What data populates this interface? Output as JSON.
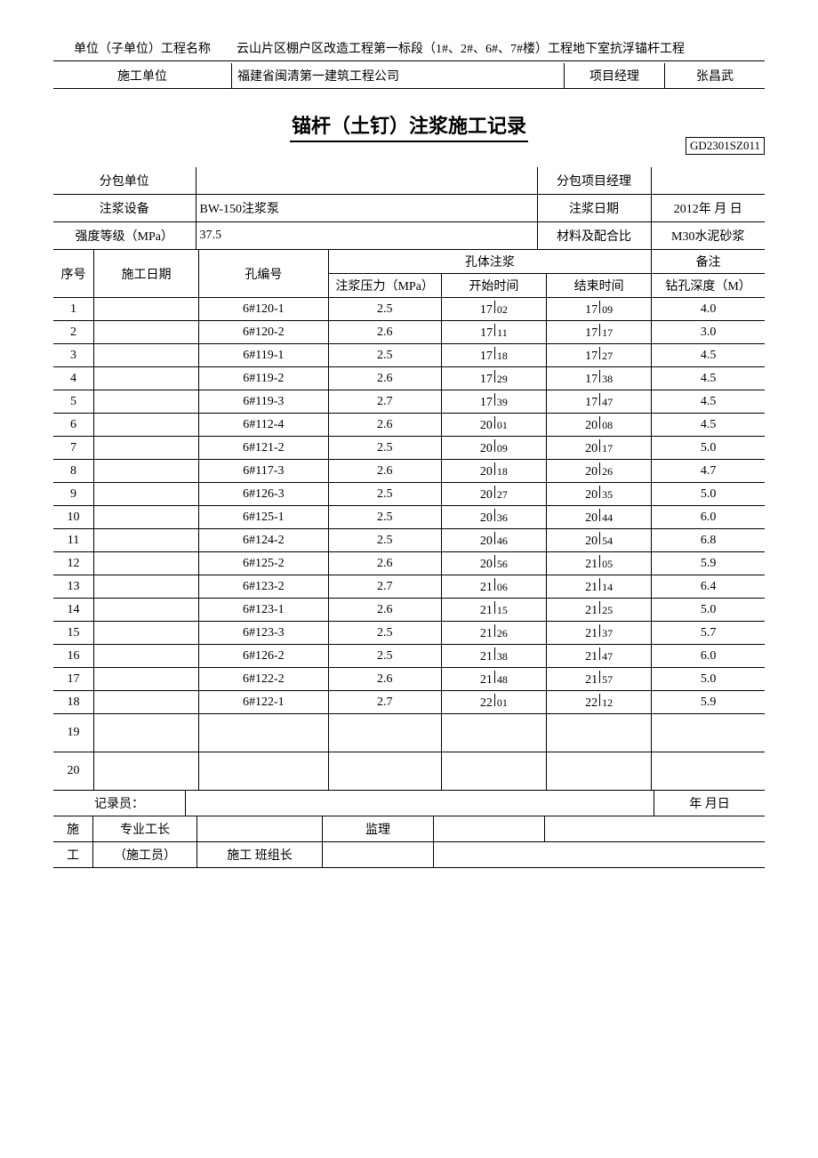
{
  "header": {
    "unit_name_label": "单位（子单位）工程名称",
    "unit_name_value": "云山片区棚户区改造工程第一标段（1#、2#、6#、7#楼）工程地下室抗浮锚杆工程",
    "construction_unit_label": "施工单位",
    "construction_unit_value": "福建省闽清第一建筑工程公司",
    "pm_label": "项目经理",
    "pm_value": "张昌武"
  },
  "title": "锚杆（土钉）注浆施工记录",
  "doc_code": "GD2301SZ011",
  "meta": {
    "sub_unit_label": "分包单位",
    "sub_unit_value": "",
    "sub_pm_label": "分包项目经理",
    "sub_pm_value": "",
    "equip_label": "注浆设备",
    "equip_value": "BW-150注浆泵",
    "date_label": "注浆日期",
    "date_value": "2012年 月 日",
    "grade_label": "强度等级（MPa）",
    "grade_value": "37.5",
    "mix_label": "材料及配合比",
    "mix_value": "M30水泥砂浆"
  },
  "thead": {
    "seq": "序号",
    "date": "施工日期",
    "hole": "孔编号",
    "grout": "孔体注浆",
    "remark": "备注",
    "pressure": "注浆压力（MPa）",
    "start": "开始时间",
    "end": "结束时间",
    "depth": "钻孔深度（M）"
  },
  "rows": [
    {
      "seq": "1",
      "date": "",
      "hole": "6#120-1",
      "press": "2.5",
      "sh": "17",
      "sm": "02",
      "eh": "17",
      "em": "09",
      "depth": "4.0"
    },
    {
      "seq": "2",
      "date": "",
      "hole": "6#120-2",
      "press": "2.6",
      "sh": "17",
      "sm": "11",
      "eh": "17",
      "em": "17",
      "depth": "3.0"
    },
    {
      "seq": "3",
      "date": "",
      "hole": "6#119-1",
      "press": "2.5",
      "sh": "17",
      "sm": "18",
      "eh": "17",
      "em": "27",
      "depth": "4.5"
    },
    {
      "seq": "4",
      "date": "",
      "hole": "6#119-2",
      "press": "2.6",
      "sh": "17",
      "sm": "29",
      "eh": "17",
      "em": "38",
      "depth": "4.5"
    },
    {
      "seq": "5",
      "date": "",
      "hole": "6#119-3",
      "press": "2.7",
      "sh": "17",
      "sm": "39",
      "eh": "17",
      "em": "47",
      "depth": "4.5"
    },
    {
      "seq": "6",
      "date": "",
      "hole": "6#112-4",
      "press": "2.6",
      "sh": "20",
      "sm": "01",
      "eh": "20",
      "em": "08",
      "depth": "4.5"
    },
    {
      "seq": "7",
      "date": "",
      "hole": "6#121-2",
      "press": "2.5",
      "sh": "20",
      "sm": "09",
      "eh": "20",
      "em": "17",
      "depth": "5.0"
    },
    {
      "seq": "8",
      "date": "",
      "hole": "6#117-3",
      "press": "2.6",
      "sh": "20",
      "sm": "18",
      "eh": "20",
      "em": "26",
      "depth": "4.7"
    },
    {
      "seq": "9",
      "date": "",
      "hole": "6#126-3",
      "press": "2.5",
      "sh": "20",
      "sm": "27",
      "eh": "20",
      "em": "35",
      "depth": "5.0"
    },
    {
      "seq": "10",
      "date": "",
      "hole": "6#125-1",
      "press": "2.5",
      "sh": "20",
      "sm": "36",
      "eh": "20",
      "em": "44",
      "depth": "6.0"
    },
    {
      "seq": "11",
      "date": "",
      "hole": "6#124-2",
      "press": "2.5",
      "sh": "20",
      "sm": "46",
      "eh": "20",
      "em": "54",
      "depth": "6.8"
    },
    {
      "seq": "12",
      "date": "",
      "hole": "6#125-2",
      "press": "2.6",
      "sh": "20",
      "sm": "56",
      "eh": "21",
      "em": "05",
      "depth": "5.9"
    },
    {
      "seq": "13",
      "date": "",
      "hole": "6#123-2",
      "press": "2.7",
      "sh": "21",
      "sm": "06",
      "eh": "21",
      "em": "14",
      "depth": "6.4"
    },
    {
      "seq": "14",
      "date": "",
      "hole": "6#123-1",
      "press": "2.6",
      "sh": "21",
      "sm": "15",
      "eh": "21",
      "em": "25",
      "depth": "5.0"
    },
    {
      "seq": "15",
      "date": "",
      "hole": "6#123-3",
      "press": "2.5",
      "sh": "21",
      "sm": "26",
      "eh": "21",
      "em": "37",
      "depth": "5.7"
    },
    {
      "seq": "16",
      "date": "",
      "hole": "6#126-2",
      "press": "2.5",
      "sh": "21",
      "sm": "38",
      "eh": "21",
      "em": "47",
      "depth": "6.0"
    },
    {
      "seq": "17",
      "date": "",
      "hole": "6#122-2",
      "press": "2.6",
      "sh": "21",
      "sm": "48",
      "eh": "21",
      "em": "57",
      "depth": "5.0"
    },
    {
      "seq": "18",
      "date": "",
      "hole": "6#122-1",
      "press": "2.7",
      "sh": "22",
      "sm": "01",
      "eh": "22",
      "em": "12",
      "depth": "5.9"
    },
    {
      "seq": "19",
      "date": "",
      "hole": "",
      "press": "",
      "sh": "",
      "sm": "",
      "eh": "",
      "em": "",
      "depth": ""
    },
    {
      "seq": "20",
      "date": "",
      "hole": "",
      "press": "",
      "sh": "",
      "sm": "",
      "eh": "",
      "em": "",
      "depth": ""
    }
  ],
  "footer": {
    "recorder_label": "记录员：",
    "recorder_date": "年 月日",
    "shi": "施",
    "gong": "工",
    "foreman_label": "专业工长",
    "foreman_sub": "（施工员）",
    "team_leader_label": "施工 班组长",
    "supervisor_label": "监理"
  }
}
